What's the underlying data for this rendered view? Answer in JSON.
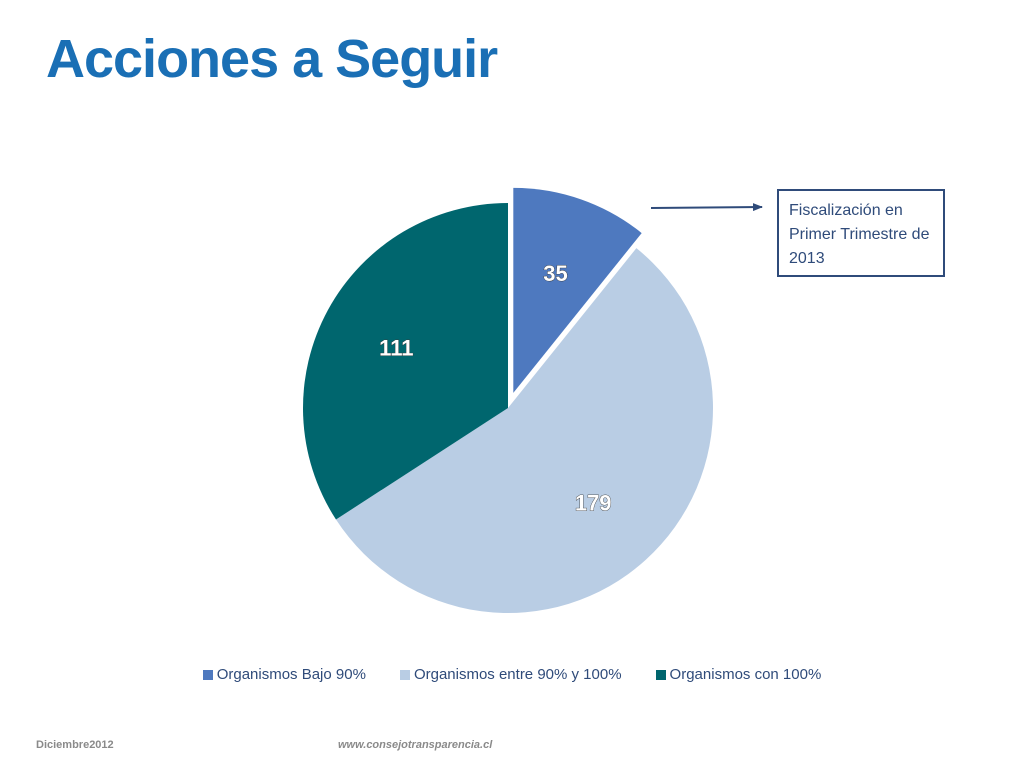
{
  "slide": {
    "title": "Acciones a Seguir",
    "callout": "Fiscalización en Primer Trimestre de 2013",
    "footer_left": "Diciembre2012",
    "footer_right": "www.consejotransparencia.cl"
  },
  "chart_data": {
    "type": "pie",
    "categories": [
      "Organismos Bajo 90%",
      "Organismos entre 90% y 100%",
      "Organismos con 100%"
    ],
    "values": [
      35,
      179,
      111
    ],
    "colors": [
      "#4e79bf",
      "#b9cde4",
      "#00666e"
    ],
    "data_labels": [
      "35",
      "179",
      "111"
    ],
    "exploded": [
      true,
      false,
      false
    ],
    "legend_position": "bottom",
    "annotation": {
      "text": "Fiscalización en Primer Trimestre de 2013",
      "points_to": "Organismos Bajo 90%"
    }
  }
}
